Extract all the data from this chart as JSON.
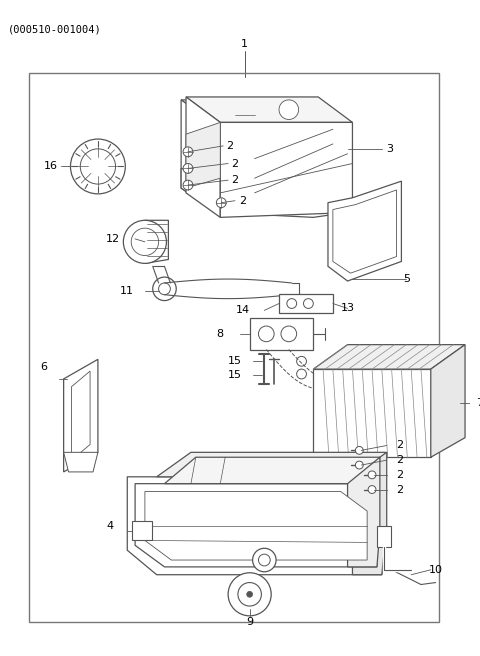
{
  "title": "(000510-001004)",
  "bg_color": "#ffffff",
  "lc": "#555555",
  "lw": 0.9,
  "figsize": [
    4.8,
    6.56
  ],
  "dpi": 100
}
